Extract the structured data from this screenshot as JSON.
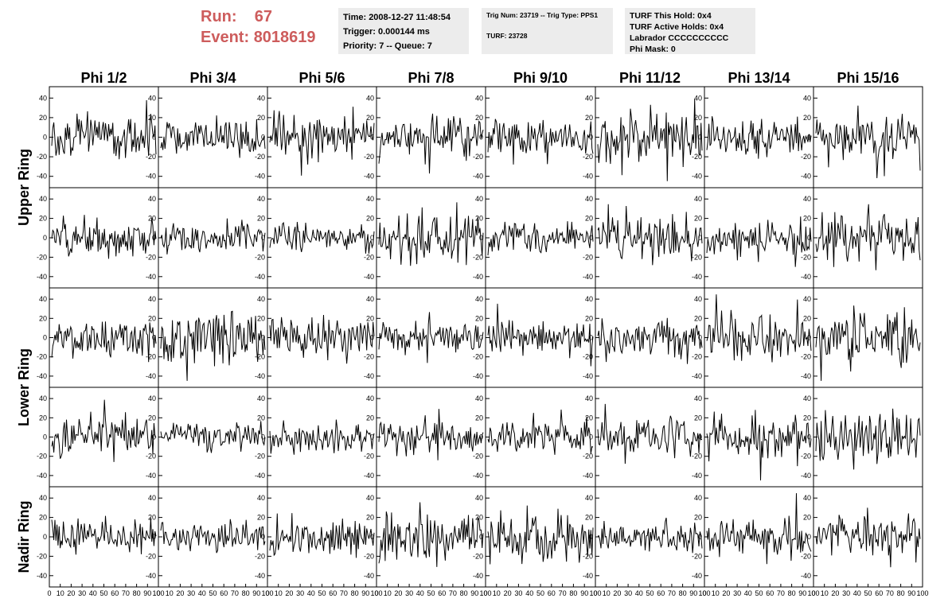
{
  "header": {
    "run_label": "Run:",
    "run_value": "67",
    "event_label": "Event:",
    "event_value": "8018619",
    "time": "Time: 2008-12-27 11:48:54",
    "trigger": "Trigger: 0.000144 ms",
    "priority": "Priority: 7 -- Queue: 7",
    "trig_num": "Trig Num: 23719 -- Trig Type: PPS1",
    "turf": "TURF: 23728",
    "turf_this_hold": "TURF This Hold: 0x4",
    "turf_active_holds": "TURF Active Holds: 0x4",
    "labrador": "Labrador CCCCCCCCCC",
    "phi_mask": "Phi Mask: 0"
  },
  "colors": {
    "header_text": "#cd5c5c",
    "info_bg": "#ececec",
    "trace": "#000000"
  },
  "chart_data": {
    "type": "line",
    "columns": [
      "Phi 1/2",
      "Phi 3/4",
      "Phi 5/6",
      "Phi 7/8",
      "Phi 9/10",
      "Phi 11/12",
      "Phi 13/14",
      "Phi 15/16"
    ],
    "rows": [
      "Upper Ring",
      "Lower Ring",
      "Nadir Ring"
    ],
    "sub_rows_per_ring": [
      2,
      2,
      1
    ],
    "xlim": [
      0,
      100
    ],
    "ylim": [
      -50,
      50
    ],
    "x_ticks": [
      "0",
      "10",
      "20",
      "30",
      "40",
      "50",
      "60",
      "70",
      "80",
      "90",
      "100"
    ],
    "y_ticks": [
      "-40",
      "-20",
      "0",
      "20",
      "40"
    ],
    "samples_per_trace": 100,
    "typical_amplitude": [
      -40,
      40
    ]
  }
}
